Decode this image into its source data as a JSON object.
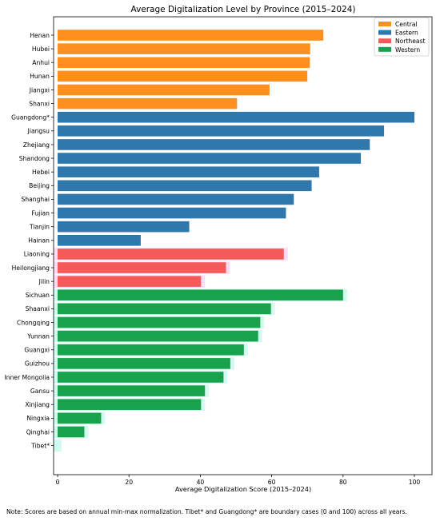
{
  "chart_data": {
    "type": "bar",
    "orientation": "horizontal",
    "title": "Average Digitalization Level by Province (2015–2024)",
    "xlabel": "Average Digitalization Score (2015–2024)",
    "ylabel": "",
    "xlim": [
      0,
      105
    ],
    "xticks": [
      0,
      20,
      40,
      60,
      80,
      100
    ],
    "grid": false,
    "legend_position": "top-right",
    "series": [
      {
        "name": "Central",
        "color": "#ff9020"
      },
      {
        "name": "Eastern",
        "color": "#2e78ae"
      },
      {
        "name": "Northeast",
        "color": "#f55a5a"
      },
      {
        "name": "Western",
        "color": "#17a24b"
      }
    ],
    "categories": [
      "Henan",
      "Hubei",
      "Anhui",
      "Hunan",
      "Jiangxi",
      "Shanxi",
      "Guangdong*",
      "Jiangsu",
      "Zhejiang",
      "Shandong",
      "Hebei",
      "Beijing",
      "Shanghai",
      "Fujian",
      "Tianjin",
      "Hainan",
      "Liaoning",
      "Heilongjiang",
      "Jilin",
      "Sichuan",
      "Shaanxi",
      "Chongqing",
      "Yunnan",
      "Guangxi",
      "Guizhou",
      "Inner Mongolia",
      "Gansu",
      "Xinjiang",
      "Ningxia",
      "Qinghai",
      "Tibet*"
    ],
    "values": [
      74.5,
      70.8,
      70.7,
      70.0,
      59.4,
      50.3,
      100.0,
      91.5,
      87.5,
      85.0,
      73.3,
      71.2,
      66.2,
      64.0,
      36.9,
      23.3,
      63.4,
      47.2,
      40.2,
      80.0,
      59.8,
      56.8,
      56.2,
      52.2,
      48.4,
      46.5,
      41.3,
      40.2,
      12.2,
      7.5,
      0.0
    ],
    "regions": [
      "Central",
      "Central",
      "Central",
      "Central",
      "Central",
      "Central",
      "Eastern",
      "Eastern",
      "Eastern",
      "Eastern",
      "Eastern",
      "Eastern",
      "Eastern",
      "Eastern",
      "Eastern",
      "Eastern",
      "Northeast",
      "Northeast",
      "Northeast",
      "Western",
      "Western",
      "Western",
      "Western",
      "Western",
      "Western",
      "Western",
      "Western",
      "Western",
      "Western",
      "Western",
      "Western"
    ]
  },
  "note": "Note: Scores are based on annual min-max normalization. Tibet* and Guangdong* are boundary cases (0 and 100) across all years."
}
